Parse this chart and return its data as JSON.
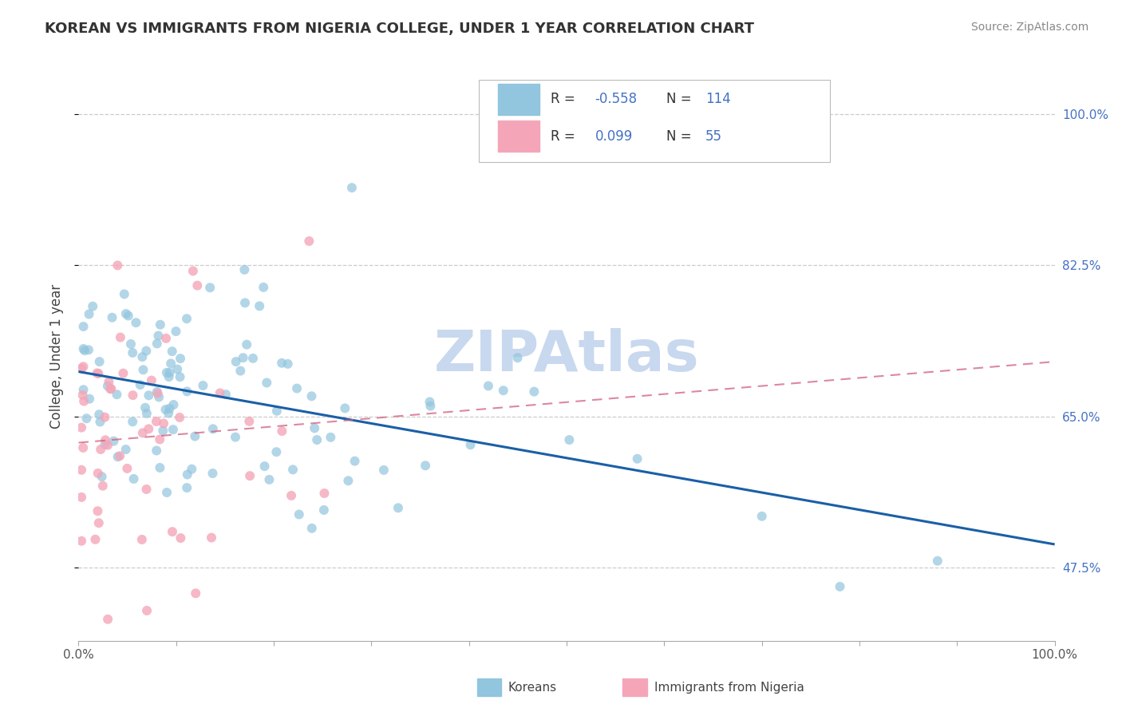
{
  "title": "KOREAN VS IMMIGRANTS FROM NIGERIA COLLEGE, UNDER 1 YEAR CORRELATION CHART",
  "source": "Source: ZipAtlas.com",
  "ylabel": "College, Under 1 year",
  "xlim": [
    0.0,
    1.0
  ],
  "ylim": [
    0.4,
    1.05
  ],
  "y_ticks_right": [
    0.475,
    0.65,
    0.825,
    1.0
  ],
  "y_tick_labels_right": [
    "47.5%",
    "65.0%",
    "82.5%",
    "100.0%"
  ],
  "korean_color": "#92c5de",
  "nigeria_color": "#f4a6b8",
  "korean_line_color": "#1a5fa8",
  "nigeria_line_color": "#d06080",
  "korean_R": -0.558,
  "korean_N": 114,
  "nigeria_R": 0.099,
  "nigeria_N": 55,
  "background_color": "#ffffff",
  "grid_color": "#cccccc",
  "watermark_color": "#c8d8ee",
  "title_color": "#333333",
  "source_color": "#888888",
  "right_tick_color": "#4472c4",
  "legend_text_color_R": "#333333",
  "legend_text_color_N": "#4472c4",
  "legend_R_value_color": "#4472c4"
}
